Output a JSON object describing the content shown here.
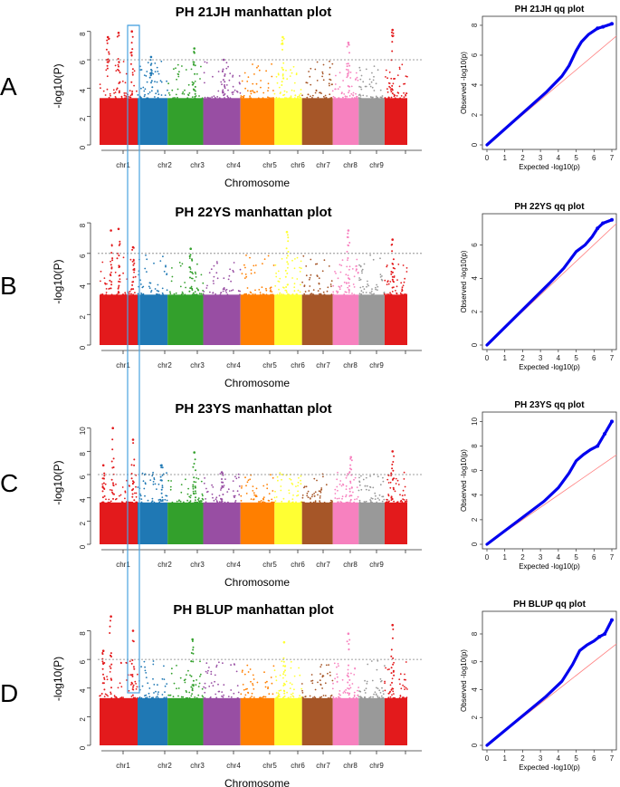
{
  "figure": {
    "chromosome_colors": [
      "#e31a1c",
      "#1f78b4",
      "#33a02c",
      "#984ea3",
      "#ff7f00",
      "#ffff33",
      "#a65628",
      "#f781bf",
      "#999999",
      "#e31a1c"
    ],
    "threshold_color": "#808080",
    "highlight_color": "#4aa3df",
    "qq_point_color": "#0000ee",
    "qq_line_color": "#ff8080"
  },
  "chart_data": [
    {
      "type": "scatter",
      "panel": "A",
      "title": "PH 21JH manhattan plot",
      "xlabel": "Chromosome",
      "ylabel": "-log10(P)",
      "categories": [
        "chr1",
        "",
        "chr2",
        "chr3",
        "chr4",
        "chr5",
        "chr6",
        "chr7",
        "chr8",
        "chr9",
        ""
      ],
      "x_tick_labels": [
        "chr1",
        "chr2",
        "chr3",
        "chr4",
        "chr5",
        "chr6",
        "chr7",
        "chr8",
        "chr9"
      ],
      "ylim": [
        0,
        8.3
      ],
      "y_ticks": [
        0,
        2,
        4,
        6,
        8
      ],
      "threshold": 6,
      "peaks": [
        {
          "chromosome": 1,
          "position": 0.22,
          "value": 7.6
        },
        {
          "chromosome": 1,
          "position": 0.5,
          "value": 7.9
        },
        {
          "chromosome": 1,
          "position": 0.85,
          "value": 8.0
        },
        {
          "chromosome": 2,
          "position": 0.45,
          "value": 6.2
        },
        {
          "chromosome": 3,
          "position": 0.75,
          "value": 6.8
        },
        {
          "chromosome": 4,
          "position": 0.55,
          "value": 6.0
        },
        {
          "chromosome": 6,
          "position": 0.3,
          "value": 7.6
        },
        {
          "chromosome": 8,
          "position": 0.6,
          "value": 7.2
        },
        {
          "chromosome": 10,
          "position": 0.35,
          "value": 8.1
        }
      ]
    },
    {
      "type": "scatter",
      "panel": "A",
      "title": "PH 21JH qq plot",
      "xlabel": "Expected -log10(p)",
      "ylabel": "Observed -log10(p)",
      "xlim": [
        0,
        7
      ],
      "ylim": [
        0,
        8.3
      ],
      "x_ticks": [
        0,
        1,
        2,
        3,
        4,
        5,
        6,
        7
      ],
      "y_ticks": [
        0,
        2,
        4,
        6,
        8
      ],
      "curve": {
        "x": [
          0,
          3.3,
          4.2,
          4.6,
          5.0,
          5.3,
          5.7,
          6.2,
          6.5,
          7.0
        ],
        "y": [
          0,
          3.5,
          4.6,
          5.3,
          6.3,
          6.9,
          7.4,
          7.8,
          7.9,
          8.1
        ]
      }
    },
    {
      "type": "scatter",
      "panel": "B",
      "title": "PH 22YS manhattan plot",
      "xlabel": "Chromosome",
      "ylabel": "-log10(P)",
      "categories": [
        "chr1",
        "",
        "chr2",
        "chr3",
        "chr4",
        "chr5",
        "chr6",
        "chr7",
        "chr8",
        "chr9",
        ""
      ],
      "x_tick_labels": [
        "chr1",
        "chr2",
        "chr3",
        "chr4",
        "chr5",
        "chr6",
        "chr7",
        "chr8",
        "chr9"
      ],
      "ylim": [
        0,
        8.3
      ],
      "y_ticks": [
        0,
        2,
        4,
        6,
        8
      ],
      "threshold": 6,
      "peaks": [
        {
          "chromosome": 1,
          "position": 0.3,
          "value": 7.5
        },
        {
          "chromosome": 1,
          "position": 0.5,
          "value": 7.6
        },
        {
          "chromosome": 1,
          "position": 0.88,
          "value": 6.4
        },
        {
          "chromosome": 3,
          "position": 0.65,
          "value": 6.3
        },
        {
          "chromosome": 6,
          "position": 0.45,
          "value": 7.4
        },
        {
          "chromosome": 8,
          "position": 0.6,
          "value": 7.5
        },
        {
          "chromosome": 10,
          "position": 0.35,
          "value": 6.9
        }
      ]
    },
    {
      "type": "scatter",
      "panel": "B",
      "title": "PH 22YS qq plot",
      "xlabel": "Expected -log10(p)",
      "ylabel": "Observed -log10(p)",
      "xlim": [
        0,
        7
      ],
      "ylim": [
        0,
        7.6
      ],
      "x_ticks": [
        0,
        1,
        2,
        3,
        4,
        5,
        6,
        7
      ],
      "y_ticks": [
        0,
        2,
        4,
        6
      ],
      "curve": {
        "x": [
          0,
          3.5,
          4.3,
          5.0,
          5.5,
          5.9,
          6.2,
          6.5,
          7.0
        ],
        "y": [
          0,
          3.7,
          4.6,
          5.6,
          6.0,
          6.5,
          7.0,
          7.3,
          7.5
        ]
      }
    },
    {
      "type": "scatter",
      "panel": "C",
      "title": "PH 23YS manhattan plot",
      "xlabel": "Chromosome",
      "ylabel": "-log10(P)",
      "categories": [
        "chr1",
        "",
        "chr2",
        "chr3",
        "chr4",
        "chr5",
        "chr6",
        "chr7",
        "chr8",
        "chr9",
        ""
      ],
      "x_tick_labels": [
        "chr1",
        "chr2",
        "chr3",
        "chr4",
        "chr5",
        "chr6",
        "chr7",
        "chr8",
        "chr9"
      ],
      "ylim": [
        0,
        10.6
      ],
      "y_ticks": [
        0,
        2,
        4,
        6,
        8,
        10
      ],
      "threshold": 6,
      "peaks": [
        {
          "chromosome": 1,
          "position": 0.35,
          "value": 10.0
        },
        {
          "chromosome": 1,
          "position": 0.88,
          "value": 9.0
        },
        {
          "chromosome": 1,
          "position": 0.1,
          "value": 6.8
        },
        {
          "chromosome": 2,
          "position": 0.8,
          "value": 6.8
        },
        {
          "chromosome": 3,
          "position": 0.75,
          "value": 7.9
        },
        {
          "chromosome": 4,
          "position": 0.5,
          "value": 6.2
        },
        {
          "chromosome": 8,
          "position": 0.7,
          "value": 7.5
        },
        {
          "chromosome": 10,
          "position": 0.35,
          "value": 8.0
        }
      ]
    },
    {
      "type": "scatter",
      "panel": "C",
      "title": "PH 23YS qq plot",
      "xlabel": "Expected -log10(p)",
      "ylabel": "Observed -log10(p)",
      "xlim": [
        0,
        7
      ],
      "ylim": [
        0,
        10.4
      ],
      "x_ticks": [
        0,
        1,
        2,
        3,
        4,
        5,
        6,
        7
      ],
      "y_ticks": [
        0,
        2,
        4,
        6,
        8,
        10
      ],
      "curve": {
        "x": [
          0,
          3.2,
          4.0,
          4.6,
          5.0,
          5.4,
          5.8,
          6.2,
          6.6,
          7.0
        ],
        "y": [
          0,
          3.5,
          4.6,
          5.8,
          6.8,
          7.3,
          7.7,
          8.0,
          9.0,
          10.0
        ]
      }
    },
    {
      "type": "scatter",
      "panel": "D",
      "title": "PH BLUP manhattan plot",
      "xlabel": "Chromosome",
      "ylabel": "-log10(P)",
      "categories": [
        "chr1",
        "",
        "chr2",
        "chr3",
        "chr4",
        "chr5",
        "chr6",
        "chr7",
        "chr8",
        "chr9",
        ""
      ],
      "x_tick_labels": [
        "chr1",
        "chr2",
        "chr3",
        "chr4",
        "chr5",
        "chr6",
        "chr7",
        "chr8",
        "chr9"
      ],
      "ylim": [
        0,
        9.3
      ],
      "y_ticks": [
        0,
        2,
        4,
        6,
        8
      ],
      "threshold": 6,
      "peaks": [
        {
          "chromosome": 1,
          "position": 0.3,
          "value": 9.0
        },
        {
          "chromosome": 1,
          "position": 0.88,
          "value": 8.0
        },
        {
          "chromosome": 1,
          "position": 0.1,
          "value": 6.6
        },
        {
          "chromosome": 3,
          "position": 0.7,
          "value": 7.4
        },
        {
          "chromosome": 6,
          "position": 0.35,
          "value": 7.2
        },
        {
          "chromosome": 8,
          "position": 0.6,
          "value": 7.8
        },
        {
          "chromosome": 10,
          "position": 0.35,
          "value": 8.4
        }
      ]
    },
    {
      "type": "scatter",
      "panel": "D",
      "title": "PH BLUP qq plot",
      "xlabel": "Expected -log10(p)",
      "ylabel": "Observed -log10(p)",
      "xlim": [
        0,
        7
      ],
      "ylim": [
        0,
        9.3
      ],
      "x_ticks": [
        0,
        1,
        2,
        3,
        4,
        5,
        6,
        7
      ],
      "y_ticks": [
        0,
        2,
        4,
        6,
        8
      ],
      "curve": {
        "x": [
          0,
          3.3,
          4.2,
          4.8,
          5.2,
          5.6,
          6.0,
          6.3,
          6.6,
          7.0
        ],
        "y": [
          0,
          3.5,
          4.6,
          5.8,
          6.8,
          7.2,
          7.5,
          7.8,
          8.0,
          9.0
        ]
      }
    }
  ]
}
